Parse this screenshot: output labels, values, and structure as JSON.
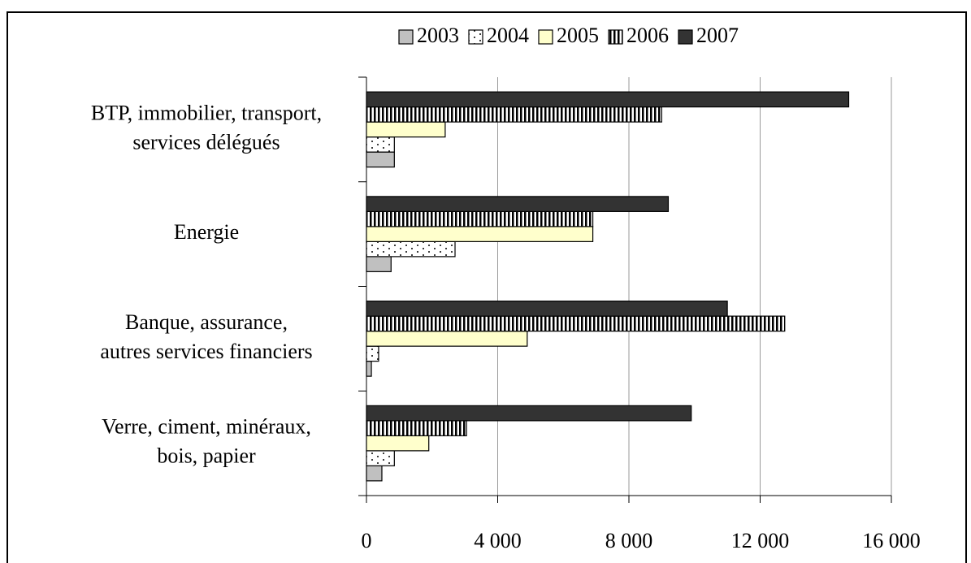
{
  "chart_data": {
    "type": "barh",
    "categories": [
      [
        "BTP, immobilier, transport,",
        "services délégués"
      ],
      [
        "Energie"
      ],
      [
        "Banque, assurance,",
        "autres services financiers"
      ],
      [
        "Verre, ciment, minéraux,",
        "bois, papier"
      ]
    ],
    "series": [
      {
        "name": "2003",
        "color": "#c0c0c0",
        "pattern": "solid",
        "values": [
          850,
          750,
          150,
          470
        ]
      },
      {
        "name": "2004",
        "color": "#ffffff",
        "pattern": "dots",
        "values": [
          850,
          2700,
          370,
          850
        ]
      },
      {
        "name": "2005",
        "color": "#ffffcc",
        "pattern": "solid",
        "values": [
          2400,
          6900,
          4900,
          1900
        ]
      },
      {
        "name": "2006",
        "color": "#ffffff",
        "pattern": "vstripes",
        "values": [
          9000,
          6900,
          12750,
          3050
        ]
      },
      {
        "name": "2007",
        "color": "#333333",
        "pattern": "solid",
        "values": [
          14700,
          9200,
          11000,
          9900
        ]
      }
    ],
    "xlim": [
      0,
      16000
    ],
    "xticks": [
      0,
      {
        "value": 4000,
        "label": "4 000"
      },
      {
        "value": 8000,
        "label": "8 000"
      },
      {
        "value": 12000,
        "label": "12 000"
      },
      {
        "value": 16000,
        "label": "16 000"
      }
    ],
    "grid": true,
    "legend": "top"
  }
}
